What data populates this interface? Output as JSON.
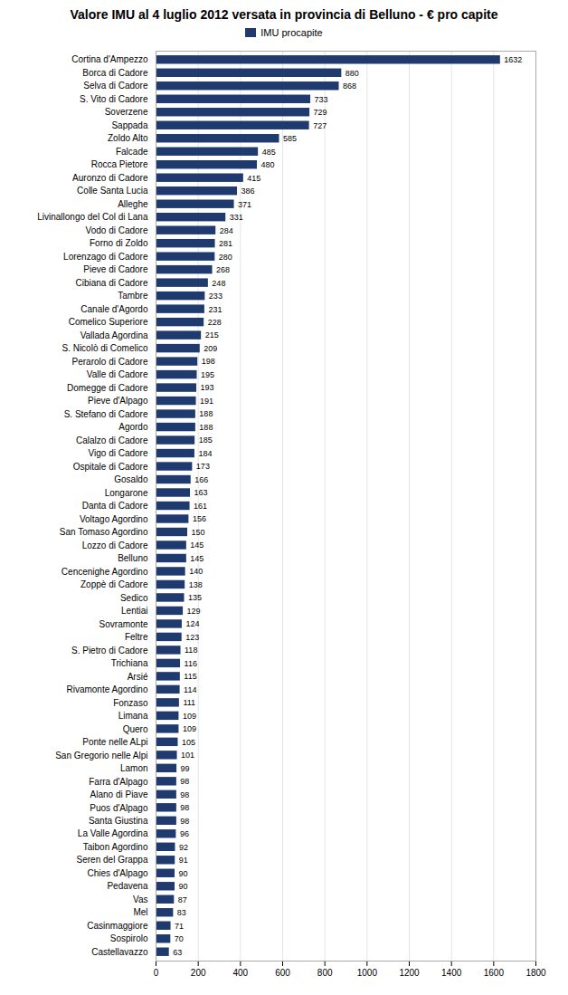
{
  "chart_data": {
    "type": "bar",
    "orientation": "horizontal",
    "title": "Valore IMU al 4 luglio 2012 versata in provincia di Belluno - € pro capite",
    "categories": [
      "Cortina d'Ampezzo",
      "Borca di Cadore",
      "Selva di Cadore",
      "S. Vito di Cadore",
      "Soverzene",
      "Sappada",
      "Zoldo Alto",
      "Falcade",
      "Rocca Pietore",
      "Auronzo di Cadore",
      "Colle Santa Lucia",
      "Alleghe",
      "Livinallongo del Col di Lana",
      "Vodo di Cadore",
      "Forno di Zoldo",
      "Lorenzago di Cadore",
      "Pieve di Cadore",
      "Cibiana di Cadore",
      "Tambre",
      "Canale d'Agordo",
      "Comelico Superiore",
      "Vallada Agordina",
      "S. Nicolò di Comelico",
      "Perarolo di Cadore",
      "Valle di Cadore",
      "Domegge di Cadore",
      "Pieve d'Alpago",
      "S. Stefano di Cadore",
      "Agordo",
      "Calalzo di Cadore",
      "Vigo di Cadore",
      "Ospitale di Cadore",
      "Gosaldo",
      "Longarone",
      "Danta di Cadore",
      "Voltago Agordino",
      "San Tomaso Agordino",
      "Lozzo di Cadore",
      "Belluno",
      "Cencenighe Agordino",
      "Zoppè di Cadore",
      "Sedico",
      "Lentiai",
      "Sovramonte",
      "Feltre",
      "S. Pietro di Cadore",
      "Trichiana",
      "Arsié",
      "Rivamonte Agordino",
      "Fonzaso",
      "Limana",
      "Quero",
      "Ponte nelle ALpi",
      "San Gregorio nelle Alpi",
      "Lamon",
      "Farra d'Alpago",
      "Alano di Piave",
      "Puos d'Alpago",
      "Santa Giustina",
      "La Valle Agordina",
      "Taibon Agordino",
      "Seren del Grappa",
      "Chies d'Alpago",
      "Pedavena",
      "Vas",
      "Mel",
      "Casinmaggiore",
      "Sospirolo",
      "Castellavazzo"
    ],
    "series": [
      {
        "name": "IMU procapite",
        "color": "#1F3A6E",
        "values": [
          1632,
          880,
          868,
          733,
          729,
          727,
          585,
          485,
          480,
          415,
          386,
          371,
          331,
          284,
          281,
          280,
          268,
          248,
          233,
          231,
          228,
          215,
          209,
          198,
          195,
          193,
          191,
          188,
          188,
          185,
          184,
          173,
          166,
          163,
          161,
          156,
          150,
          145,
          145,
          140,
          138,
          135,
          129,
          124,
          123,
          118,
          116,
          115,
          114,
          111,
          109,
          109,
          105,
          101,
          99,
          98,
          98,
          98,
          98,
          96,
          92,
          91,
          90,
          90,
          87,
          83,
          71,
          70,
          63
        ]
      }
    ],
    "xlim": [
      0,
      1800
    ],
    "xticks": [
      0,
      200,
      400,
      600,
      800,
      1000,
      1200,
      1400,
      1600,
      1800
    ],
    "grid": true,
    "legend": "top",
    "data_labels": true
  }
}
